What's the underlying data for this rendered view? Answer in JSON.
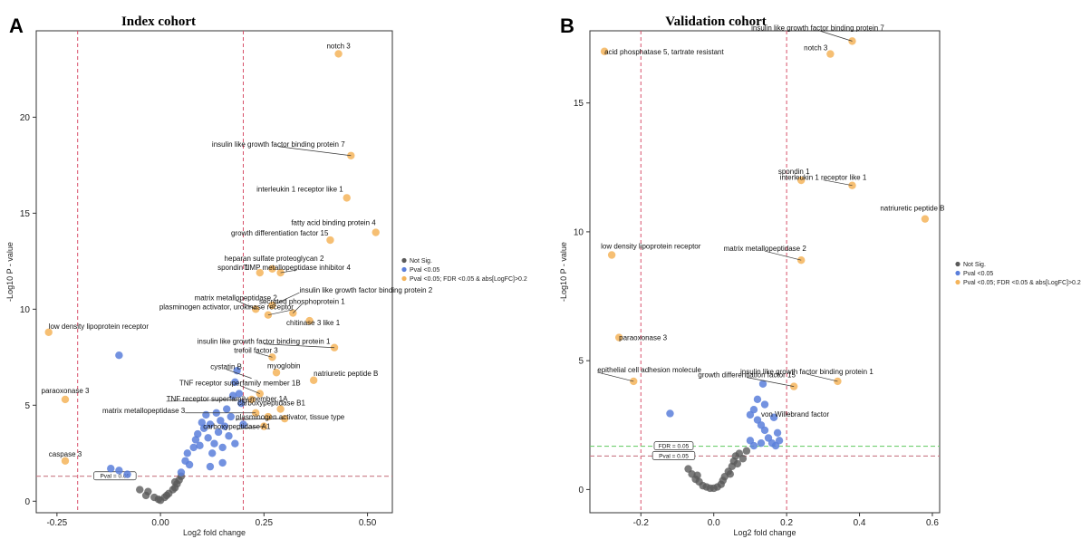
{
  "panels": [
    {
      "letter": "A",
      "title": "Index cohort",
      "xlabel": "Log2 fold change",
      "ylabel": "-Log10 P - value",
      "xlim": [
        -0.3,
        0.56
      ],
      "ylim": [
        -0.6,
        24.5
      ],
      "xticks": [
        -0.25,
        0.0,
        0.25,
        0.5
      ],
      "xtick_labels": [
        "-0.25",
        "0.00",
        "0.25",
        "0.50"
      ],
      "yticks": [
        0,
        5,
        10,
        15,
        20
      ],
      "ytick_labels": [
        "0",
        "5",
        "10",
        "15",
        "20"
      ],
      "vlines": [
        -0.2,
        0.2
      ],
      "hlines": [
        {
          "y": 1.3,
          "label": "Pval = 0.05",
          "label_x": -0.11,
          "color": "#c97a86"
        }
      ],
      "legend": [
        "Not Sig.",
        "Pval <0.05",
        "Pval <0.05; FDR <0.05 & abs[LogFC]>0.2"
      ]
    },
    {
      "letter": "B",
      "title": "Validation cohort",
      "xlabel": "Log2 fold change",
      "ylabel": "-Log10 P - value",
      "xlim": [
        -0.34,
        0.62
      ],
      "ylim": [
        -0.9,
        17.8
      ],
      "xticks": [
        -0.2,
        0.0,
        0.2,
        0.4,
        0.6
      ],
      "xtick_labels": [
        "-0.2",
        "0.0",
        "0.2",
        "0.4",
        "0.6"
      ],
      "yticks": [
        0,
        5,
        10,
        15
      ],
      "ytick_labels": [
        "0",
        "5",
        "10",
        "15"
      ],
      "vlines": [
        -0.2,
        0.2
      ],
      "hlines": [
        {
          "y": 1.3,
          "label": "Pval = 0.05",
          "label_x": -0.11,
          "color": "#c97a86"
        },
        {
          "y": 1.68,
          "label": "FDR = 0.05",
          "label_x": -0.11,
          "color": "#6fcf6f"
        }
      ],
      "legend": [
        "Not Sig.",
        "Pval <0.05",
        "Pval <0.05; FDR <0.05 & abs[LogFC]>0.2"
      ]
    }
  ],
  "colors": {
    "not_sig": "#5a5a5a",
    "pval": "#5b7fdb",
    "fdr": "#f4b45a",
    "vline": "#d8506a",
    "axis": "#333333"
  },
  "chart_data": [
    {
      "type": "scatter",
      "title": "Index cohort",
      "xlabel": "Log2 fold change",
      "ylabel": "-Log10 P - value",
      "series": [
        {
          "name": "Not Sig.",
          "points": [
            [
              -0.03,
              0.5
            ],
            [
              -0.015,
              0.2
            ],
            [
              -0.005,
              0.1
            ],
            [
              0.0,
              0.05
            ],
            [
              0.01,
              0.2
            ],
            [
              0.015,
              0.3
            ],
            [
              0.02,
              0.4
            ],
            [
              0.03,
              0.6
            ],
            [
              0.035,
              0.7
            ],
            [
              -0.05,
              0.6
            ],
            [
              -0.035,
              0.3
            ],
            [
              0.04,
              0.9
            ],
            [
              0.045,
              1.1
            ],
            [
              0.05,
              1.3
            ],
            [
              0.035,
              1.0
            ]
          ]
        },
        {
          "name": "Pval <0.05",
          "points": [
            [
              -0.1,
              1.6
            ],
            [
              -0.12,
              1.7
            ],
            [
              -0.08,
              1.4
            ],
            [
              -0.1,
              7.6
            ],
            [
              0.05,
              1.5
            ],
            [
              0.06,
              2.1
            ],
            [
              0.065,
              2.5
            ],
            [
              0.07,
              1.9
            ],
            [
              0.08,
              2.8
            ],
            [
              0.085,
              3.2
            ],
            [
              0.09,
              3.5
            ],
            [
              0.095,
              2.9
            ],
            [
              0.1,
              4.1
            ],
            [
              0.105,
              3.8
            ],
            [
              0.11,
              4.5
            ],
            [
              0.115,
              3.3
            ],
            [
              0.12,
              4.0
            ],
            [
              0.125,
              2.5
            ],
            [
              0.13,
              3.0
            ],
            [
              0.135,
              4.6
            ],
            [
              0.14,
              3.6
            ],
            [
              0.145,
              4.2
            ],
            [
              0.15,
              2.8
            ],
            [
              0.155,
              3.9
            ],
            [
              0.16,
              4.8
            ],
            [
              0.165,
              3.4
            ],
            [
              0.17,
              4.4
            ],
            [
              0.175,
              5.5
            ],
            [
              0.18,
              6.2
            ],
            [
              0.185,
              6.8
            ],
            [
              0.19,
              5.6
            ],
            [
              0.195,
              5.1
            ],
            [
              0.15,
              2.0
            ],
            [
              0.12,
              1.8
            ],
            [
              0.2,
              4.0
            ],
            [
              0.18,
              3.0
            ]
          ]
        },
        {
          "name": "Pval <0.05; FDR <0.05 & abs[LogFC]>0.2",
          "points": [
            [
              0.43,
              23.3
            ],
            [
              0.46,
              18.0
            ],
            [
              0.45,
              15.8
            ],
            [
              0.52,
              14.0
            ],
            [
              0.41,
              13.6
            ],
            [
              0.27,
              12.1
            ],
            [
              0.29,
              11.9
            ],
            [
              0.24,
              11.9
            ],
            [
              0.23,
              10.0
            ],
            [
              0.27,
              10.2
            ],
            [
              0.26,
              9.7
            ],
            [
              0.32,
              9.8
            ],
            [
              0.36,
              9.4
            ],
            [
              0.42,
              8.0
            ],
            [
              0.27,
              7.5
            ],
            [
              0.28,
              6.7
            ],
            [
              0.37,
              6.3
            ],
            [
              0.24,
              5.6
            ],
            [
              0.22,
              5.3
            ],
            [
              0.23,
              4.6
            ],
            [
              0.29,
              4.8
            ],
            [
              0.26,
              4.4
            ],
            [
              0.3,
              4.3
            ],
            [
              0.25,
              3.9
            ],
            [
              -0.27,
              8.8
            ],
            [
              -0.23,
              5.3
            ],
            [
              -0.23,
              2.1
            ]
          ]
        }
      ],
      "annotations": [
        {
          "text": "notch 3",
          "x": 0.43,
          "y": 23.3
        },
        {
          "text": "insulin like growth factor binding protein 7",
          "x": 0.46,
          "y": 18.0
        },
        {
          "text": "interleukin 1 receptor like 1",
          "x": 0.45,
          "y": 15.8
        },
        {
          "text": "fatty acid binding protein 4",
          "x": 0.52,
          "y": 14.0
        },
        {
          "text": "growth differentiation factor 15",
          "x": 0.41,
          "y": 13.6
        },
        {
          "text": "heparan sulfate proteoglycan 2",
          "x": 0.27,
          "y": 12.1
        },
        {
          "text": "spondin 1",
          "x": 0.24,
          "y": 11.9
        },
        {
          "text": "TIMP metallopeptidase inhibitor 4",
          "x": 0.29,
          "y": 11.9
        },
        {
          "text": "matrix metallopeptidase 2",
          "x": 0.23,
          "y": 10.0
        },
        {
          "text": "insulin like growth factor binding protein 2",
          "x": 0.27,
          "y": 10.2
        },
        {
          "text": "plasminogen activator, urokinase receptor",
          "x": 0.26,
          "y": 9.7
        },
        {
          "text": "secreted phosphoprotein 1",
          "x": 0.32,
          "y": 9.8
        },
        {
          "text": "chitinase 3 like 1",
          "x": 0.36,
          "y": 9.4
        },
        {
          "text": "low density lipoprotein receptor",
          "x": -0.27,
          "y": 8.8
        },
        {
          "text": "insulin like growth factor binding protein 1",
          "x": 0.42,
          "y": 8.0
        },
        {
          "text": "trefoil factor 3",
          "x": 0.27,
          "y": 7.5
        },
        {
          "text": "myoglobin",
          "x": 0.28,
          "y": 6.7
        },
        {
          "text": "cystatin B",
          "x": 0.22,
          "y": 6.4
        },
        {
          "text": "natriuretic peptide B",
          "x": 0.37,
          "y": 6.3
        },
        {
          "text": "TNF receptor superfamily member 1B",
          "x": 0.24,
          "y": 5.6
        },
        {
          "text": "paraoxonase 3",
          "x": -0.23,
          "y": 5.3
        },
        {
          "text": "TNF receptor superfamily member 1A",
          "x": 0.22,
          "y": 5.3
        },
        {
          "text": "carboxypeptidase B1",
          "x": 0.29,
          "y": 4.8
        },
        {
          "text": "matrix metallopeptidase 3",
          "x": 0.23,
          "y": 4.6
        },
        {
          "text": "plasminogen activator, tissue type",
          "x": 0.3,
          "y": 4.3
        },
        {
          "text": "carboxypeptidase A1",
          "x": 0.25,
          "y": 3.9
        },
        {
          "text": "caspase 3",
          "x": -0.23,
          "y": 2.1
        }
      ]
    },
    {
      "type": "scatter",
      "title": "Validation cohort",
      "xlabel": "Log2 fold change",
      "ylabel": "-Log10 P - value",
      "series": [
        {
          "name": "Not Sig.",
          "points": [
            [
              -0.07,
              0.8
            ],
            [
              -0.06,
              0.6
            ],
            [
              -0.05,
              0.4
            ],
            [
              -0.04,
              0.3
            ],
            [
              -0.03,
              0.15
            ],
            [
              -0.02,
              0.1
            ],
            [
              -0.01,
              0.05
            ],
            [
              0.0,
              0.05
            ],
            [
              0.01,
              0.1
            ],
            [
              0.02,
              0.2
            ],
            [
              0.025,
              0.35
            ],
            [
              0.03,
              0.5
            ],
            [
              0.04,
              0.7
            ],
            [
              0.05,
              0.9
            ],
            [
              0.055,
              1.1
            ],
            [
              0.06,
              1.3
            ],
            [
              0.07,
              1.4
            ],
            [
              0.08,
              1.2
            ],
            [
              0.045,
              0.6
            ],
            [
              -0.045,
              0.55
            ],
            [
              0.065,
              1.0
            ],
            [
              0.09,
              1.5
            ]
          ]
        },
        {
          "name": "Pval <0.05",
          "points": [
            [
              -0.12,
              2.95
            ],
            [
              0.1,
              2.9
            ],
            [
              0.11,
              3.1
            ],
            [
              0.12,
              2.7
            ],
            [
              0.13,
              2.5
            ],
            [
              0.14,
              2.3
            ],
            [
              0.15,
              2.0
            ],
            [
              0.16,
              1.8
            ],
            [
              0.17,
              1.7
            ],
            [
              0.18,
              1.9
            ],
            [
              0.1,
              1.9
            ],
            [
              0.11,
              1.7
            ],
            [
              0.13,
              1.8
            ],
            [
              0.14,
              3.3
            ],
            [
              0.135,
              4.1
            ],
            [
              0.12,
              3.5
            ],
            [
              0.165,
              2.8
            ],
            [
              0.175,
              2.2
            ]
          ]
        },
        {
          "name": "Pval <0.05; FDR <0.05 & abs[LogFC]>0.2",
          "points": [
            [
              -0.3,
              17.0
            ],
            [
              0.38,
              17.4
            ],
            [
              0.32,
              16.9
            ],
            [
              0.24,
              12.0
            ],
            [
              0.38,
              11.8
            ],
            [
              0.58,
              10.5
            ],
            [
              -0.28,
              9.1
            ],
            [
              0.24,
              8.9
            ],
            [
              -0.26,
              5.9
            ],
            [
              0.34,
              4.2
            ],
            [
              -0.22,
              4.2
            ],
            [
              0.22,
              4.0
            ]
          ]
        }
      ],
      "annotations": [
        {
          "text": "acid phosphatase 5, tartrate resistant",
          "x": -0.3,
          "y": 17.0
        },
        {
          "text": "insulin like growth factor binding protein 7",
          "x": 0.38,
          "y": 17.4
        },
        {
          "text": "notch 3",
          "x": 0.32,
          "y": 16.9
        },
        {
          "text": "spondin 1",
          "x": 0.24,
          "y": 12.0
        },
        {
          "text": "interleukin 1 receptor like 1",
          "x": 0.38,
          "y": 11.8
        },
        {
          "text": "natriuretic peptide B",
          "x": 0.58,
          "y": 10.5
        },
        {
          "text": "low density lipoprotein receptor",
          "x": -0.28,
          "y": 9.1
        },
        {
          "text": "matrix metallopeptidase 2",
          "x": 0.24,
          "y": 8.9
        },
        {
          "text": "paraoxonase 3",
          "x": -0.26,
          "y": 5.9
        },
        {
          "text": "insulin like growth factor binding protein 1",
          "x": 0.34,
          "y": 4.2
        },
        {
          "text": "epithelial cell adhesion molecule",
          "x": -0.22,
          "y": 4.2
        },
        {
          "text": "growth differentiation factor 15",
          "x": 0.22,
          "y": 4.0
        },
        {
          "text": "von Willebrand factor",
          "x": 0.13,
          "y": 2.9
        }
      ]
    }
  ]
}
